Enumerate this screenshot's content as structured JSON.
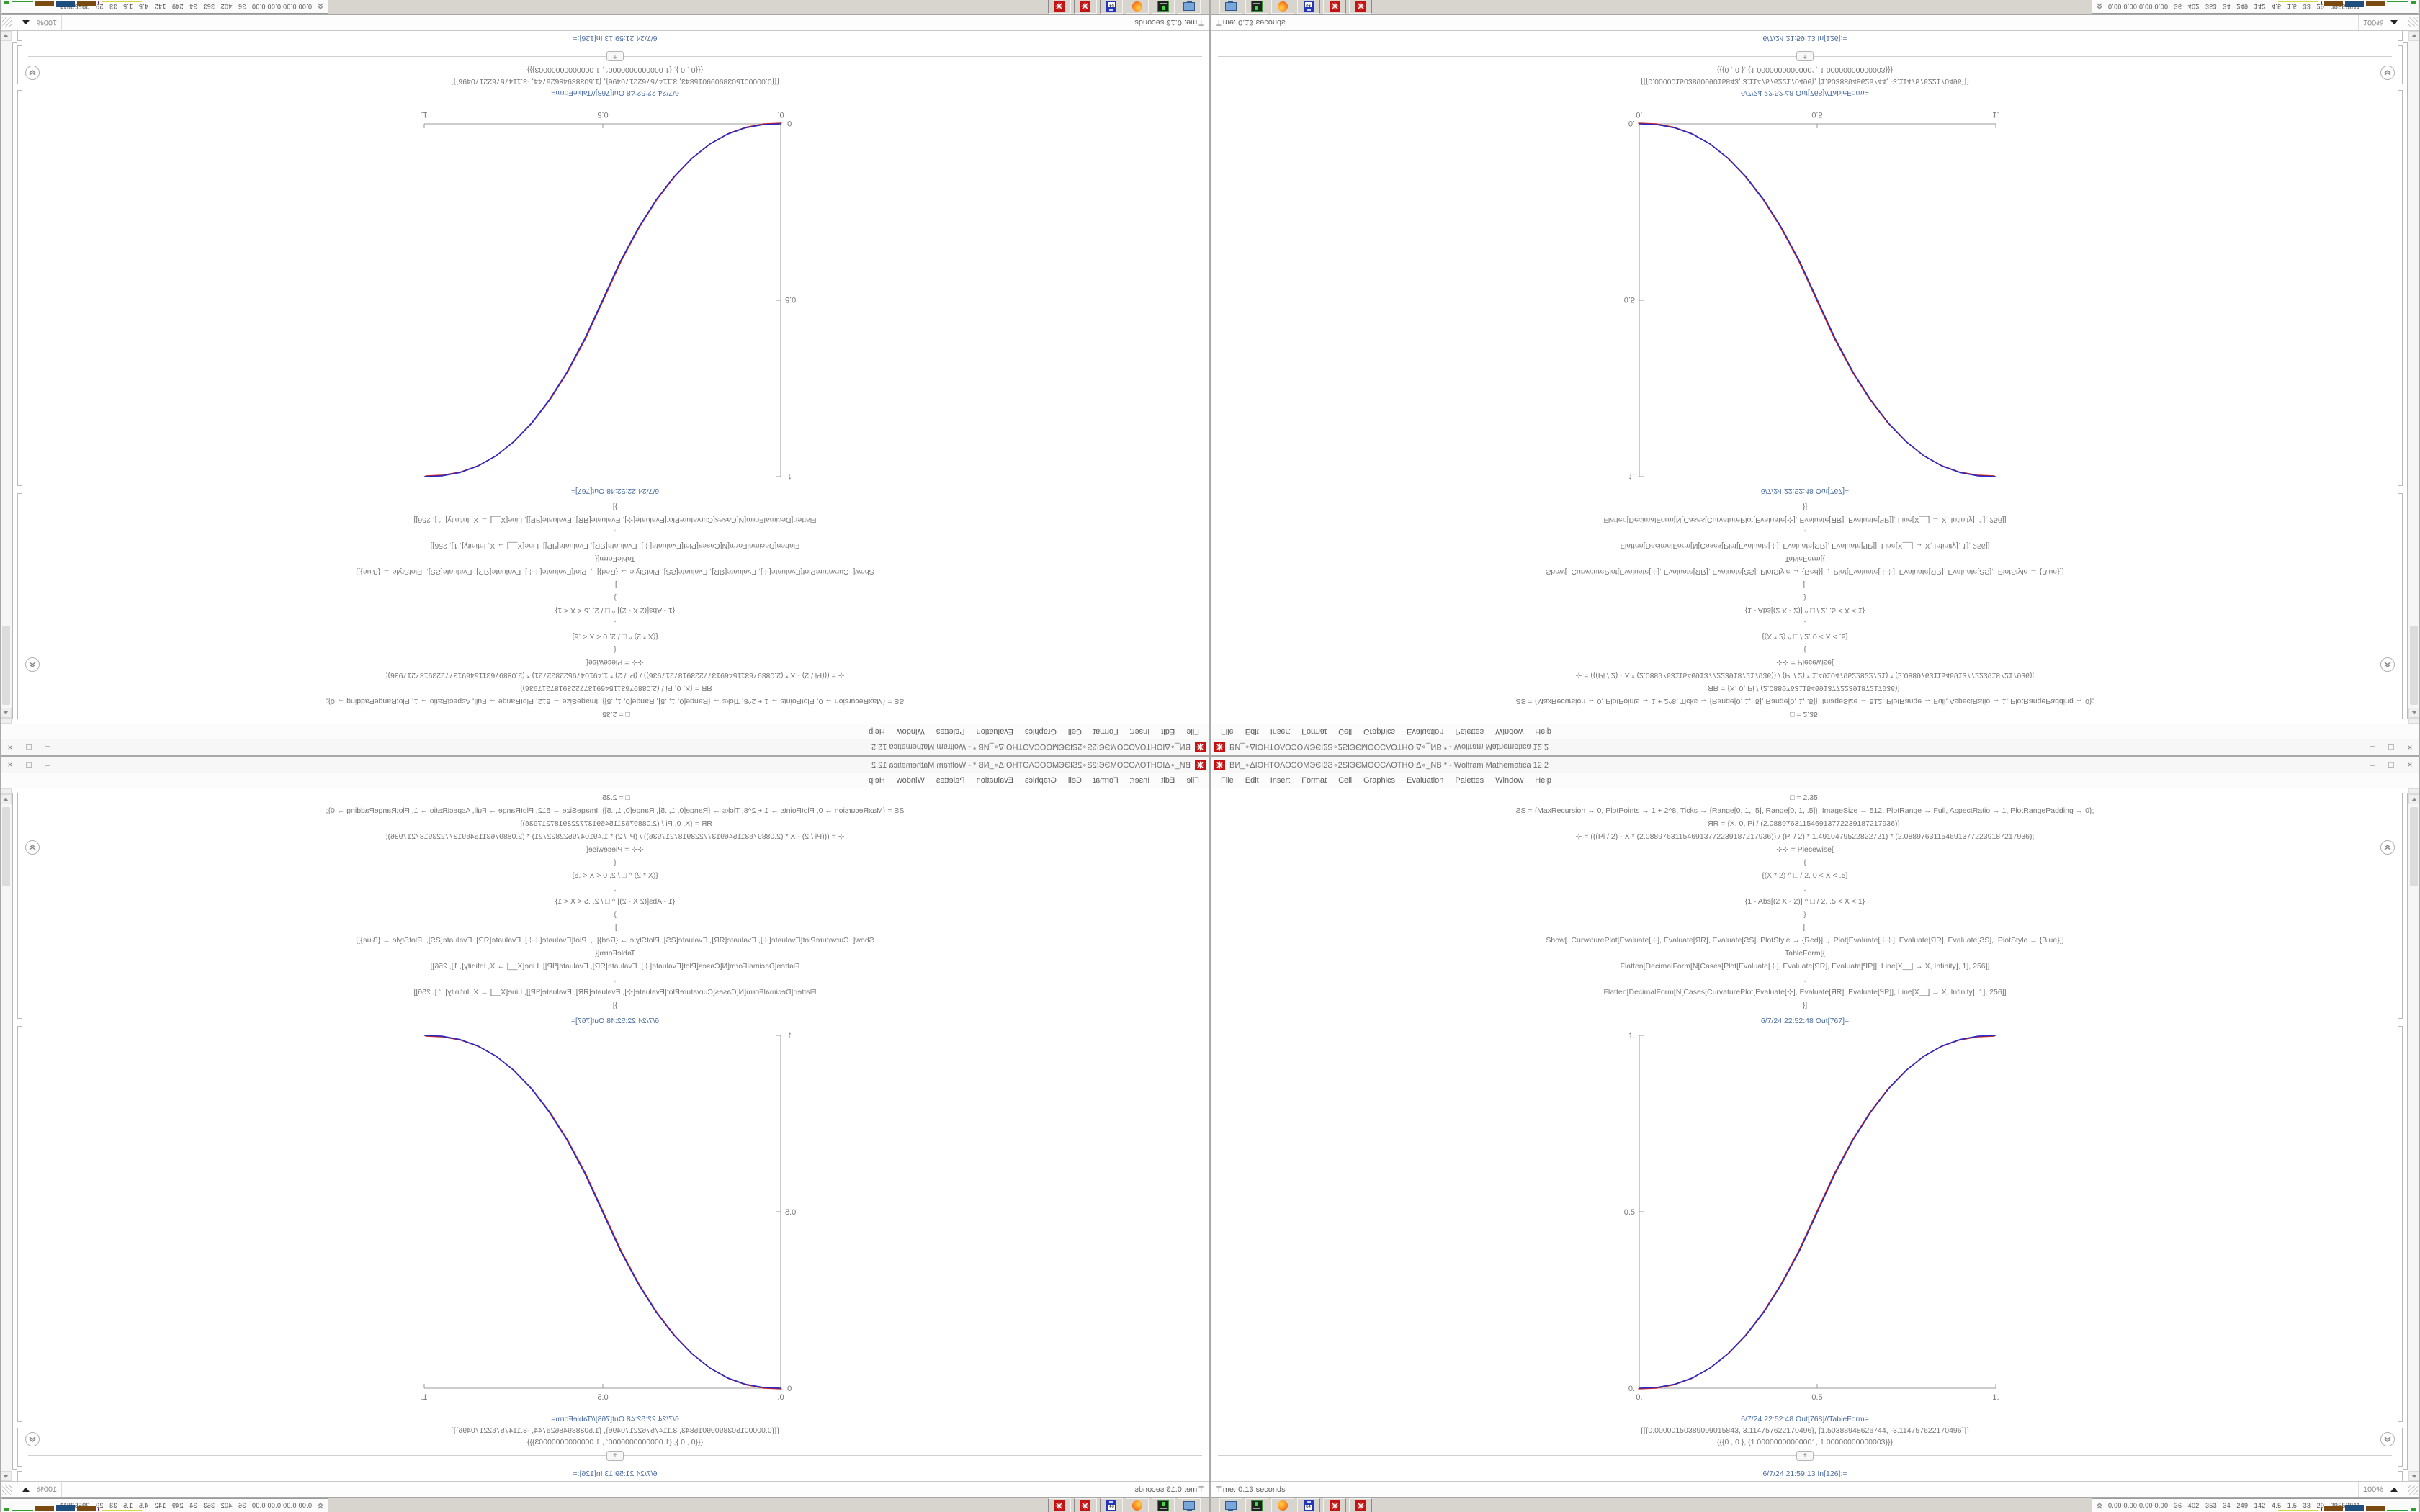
{
  "window": {
    "title": "ВИ_∘ΔΙΟΗΤΟΛΟϽΟΜЭЄΙ2Ƨ∘2ЅΙЭЄΜΟΟϹΛΟΤΗΟΙΔ∘_NB * - Wolfram Mathematica 12.2",
    "controls": {
      "minimize": "–",
      "maximize": "□",
      "close": "×"
    }
  },
  "menu": {
    "items": [
      "File",
      "Edit",
      "Insert",
      "Format",
      "Cell",
      "Graphics",
      "Evaluation",
      "Palettes",
      "Window",
      "Help"
    ]
  },
  "notebook": {
    "code_lines": [
      "□ = 2.35;",
      "ƧS = {MaxRecursion → 0, PlotPoints → 1 + 2^8, Ticks → {Range[0, 1, .5], Range[0, 1, .5]}, ImageSize → 512, PlotRange → Full, AspectRatio → 1, PlotRangePadding → 0};",
      "ЯR = {X, 0, Pi / (2.088976311546913772239187217936)};",
      "⊹ = (((Pi / 2) - X * (2.088976311546913772239187217936)) / (Pi / 2) * 1.4910479522822721) * (2.088976311546913772239187217936);",
      "⊹⊹ = Piecewise[",
      "{",
      "{(X * 2) ^ □ / 2, 0 < X < .5}",
      ",",
      "{1 - Abs[(2 X - 2)] ^ □ / 2, .5 < X < 1}",
      "}",
      "];",
      "Show[  CurvaturePlot[Evaluate[⊹], Evaluate[ЯR], Evaluate[ƧS], PlotStyle → {Red}]  ,  Plot[Evaluate[⊹⊹], Evaluate[ЯR], Evaluate[ƧS],  PlotStyle → {Blue}]]",
      "TableForm[{",
      "Flatten[DecimalForm[N[Cases[Plot[Evaluate[⊹], Evaluate[ЯR], Evaluate[ꟼP]], Line[X__] → X, Infinity], 1], 256]]",
      ",",
      "Flatten[DecimalForm[N[Cases[CurvaturePlot[Evaluate[⊹], Evaluate[ЯR], Evaluate[ꟼP]], Line[X__] → X, Infinity], 1], 256]]",
      "}]"
    ],
    "out767_label": "6/7/24 22:52:48 Out[767]=",
    "out768_label": "6/7/24 22:52:48 Out[768]//TableForm=",
    "out768_row1": "{{{0.00000150389099015843, 3.114757622170496}, {1.50388948626744, -3.114757622170496}}}",
    "out768_row2": "{{{0., 0.}, {1.00000000000001, 1.00000000000003}}}",
    "in_label": "6/7/24 21:59:13 In[126]:=",
    "insert_plus": "+"
  },
  "chart_data": {
    "type": "line",
    "title": "",
    "xlabel": "",
    "ylabel": "",
    "xlim": [
      0,
      1
    ],
    "ylim": [
      0,
      1
    ],
    "grid": false,
    "legend": "none",
    "xticks": [
      "0.",
      "0.5",
      "1."
    ],
    "yticks": [
      "0.",
      "0.5",
      "1."
    ],
    "x": [
      0,
      0.05,
      0.1,
      0.15,
      0.2,
      0.25,
      0.3,
      0.35,
      0.4,
      0.45,
      0.5,
      0.55,
      0.6,
      0.65,
      0.7,
      0.75,
      0.8,
      0.85,
      0.9,
      0.95,
      1
    ],
    "series": [
      {
        "name": "CurvaturePlot (Red)",
        "color": "#cf1f1f",
        "y": [
          0,
          0.0022,
          0.0114,
          0.0295,
          0.058,
          0.0981,
          0.1506,
          0.2163,
          0.296,
          0.3903,
          0.5,
          0.6097,
          0.704,
          0.7837,
          0.8494,
          0.9019,
          0.942,
          0.9705,
          0.9886,
          0.9978,
          1
        ]
      },
      {
        "name": "Plot (Blue)",
        "color": "#2a2ac4",
        "y": [
          0,
          0.0022,
          0.0114,
          0.0295,
          0.058,
          0.0981,
          0.1506,
          0.2163,
          0.296,
          0.3903,
          0.5,
          0.6097,
          0.704,
          0.7837,
          0.8494,
          0.9019,
          0.942,
          0.9705,
          0.9886,
          0.9978,
          1
        ]
      }
    ]
  },
  "status": {
    "time": "Time: 0.13 seconds",
    "zoom_level": "100%"
  },
  "taskbar": {
    "buttons": [
      "display-settings",
      "disk-utility",
      "firefox",
      "floppy-64",
      "mathematica",
      "mathematica"
    ],
    "floppy_label": "64",
    "tray_numbers": "0.00 0.00 0.00 0.00   36   402   353   34   249   142   4.5   1.5   33   29   29553811",
    "spark": [
      {
        "color": "#d8d840",
        "w": 56,
        "h": 2
      },
      {
        "color": "#7a1f7a",
        "w": 2,
        "h": 4
      },
      {
        "color": "#7a4a10",
        "w": 26,
        "h": 7
      },
      {
        "color": "#1d4e7e",
        "w": 26,
        "h": 9
      },
      {
        "color": "#7a4a10",
        "w": 26,
        "h": 7
      },
      {
        "color": "#2e9e2e",
        "w": 30,
        "h": 2
      },
      {
        "color": "#2e9e2e",
        "w": 8,
        "h": 4
      }
    ]
  }
}
